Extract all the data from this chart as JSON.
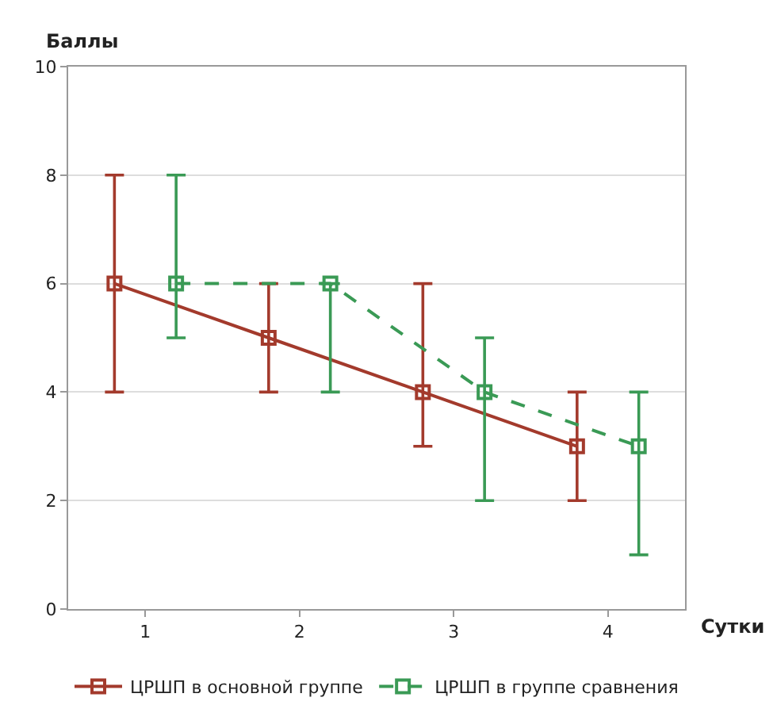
{
  "chart_data": {
    "type": "line",
    "xlabel": "Сутки",
    "ylabel": "Баллы",
    "xlim": [
      0.5,
      4.5
    ],
    "xticks": [
      1,
      2,
      3,
      4
    ],
    "ylim": [
      0,
      10
    ],
    "yticks": [
      0,
      2,
      4,
      6,
      8,
      10
    ],
    "grid": "y",
    "legend": "bottom",
    "marker": "square",
    "series": [
      {
        "name": "ЦРШП в основной группе",
        "color": "#a33a2c",
        "line_style": "solid",
        "x": [
          0.8,
          1.8,
          2.8,
          3.8
        ],
        "values": [
          6,
          5,
          4,
          3
        ],
        "errors": [
          [
            4,
            8
          ],
          [
            4,
            6
          ],
          [
            3,
            6
          ],
          [
            2,
            4
          ]
        ]
      },
      {
        "name": "ЦРШП в группе сравнения",
        "color": "#3a9a55",
        "line_style": "dashed",
        "x": [
          1.2,
          2.2,
          3.2,
          4.2
        ],
        "values": [
          6,
          6,
          4,
          3
        ],
        "errors": [
          [
            5,
            8
          ],
          [
            4,
            6
          ],
          [
            2,
            5
          ],
          [
            1,
            4
          ]
        ]
      }
    ]
  }
}
